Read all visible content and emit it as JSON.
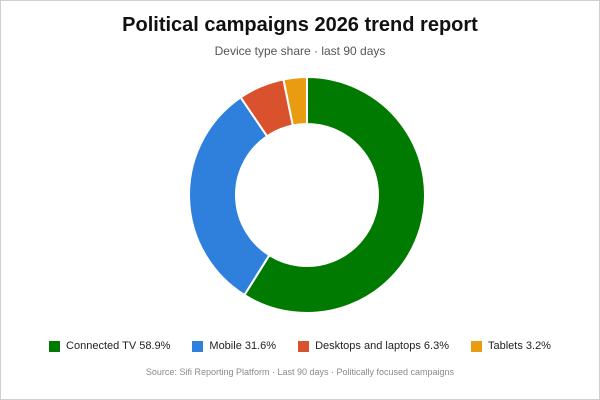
{
  "chart_data": {
    "type": "pie",
    "title": "Political campaigns 2026 trend report",
    "subtitle": "Device type share · last 90 days",
    "donut": true,
    "series": [
      {
        "name": "Connected TV",
        "value": 58.9,
        "label": "Connected TV 58.9%",
        "color": "#007a00"
      },
      {
        "name": "Mobile",
        "value": 31.6,
        "label": "Mobile 31.6%",
        "color": "#2f80dd"
      },
      {
        "name": "Desktops and laptops",
        "value": 6.3,
        "label": "Desktops and laptops 6.3%",
        "color": "#d9522d"
      },
      {
        "name": "Tablets",
        "value": 3.2,
        "label": "Tablets 3.2%",
        "color": "#e99c12"
      }
    ],
    "legend_position": "bottom",
    "source": "Source: Sifi Reporting Platform · Last 90 days · Politically focused campaigns"
  }
}
